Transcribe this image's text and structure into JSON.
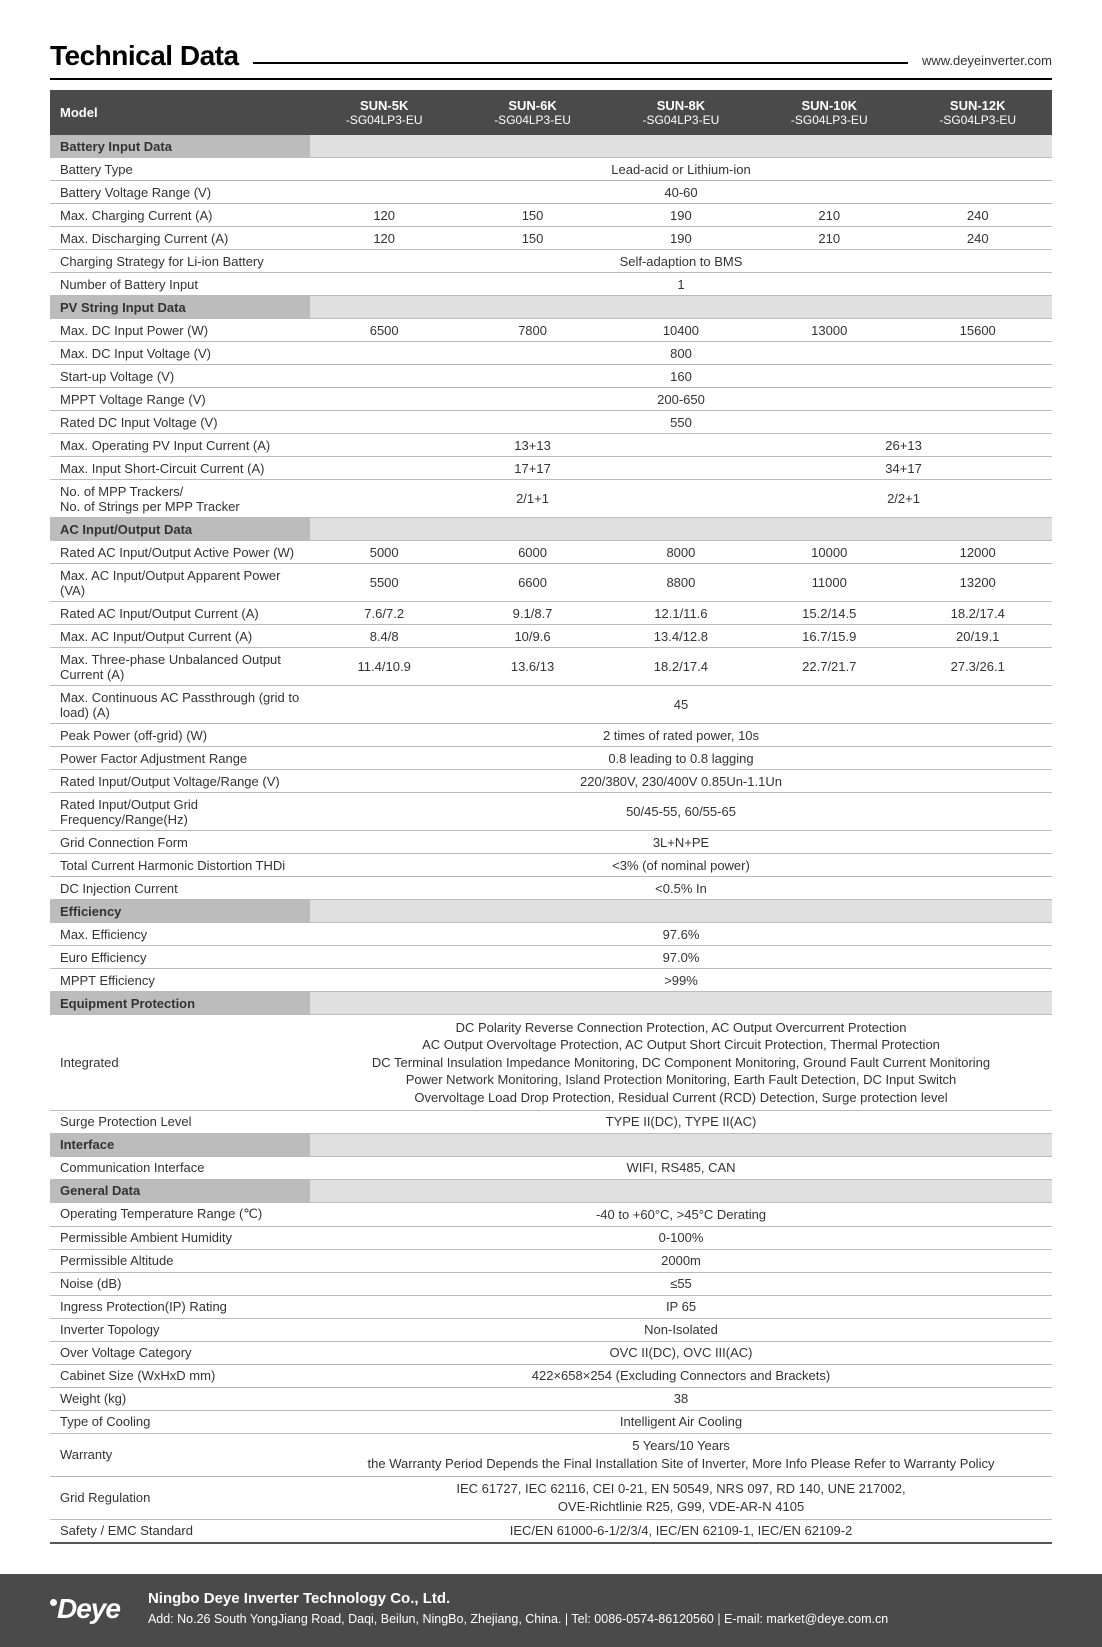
{
  "header": {
    "title": "Technical Data",
    "url": "www.deyeinverter.com"
  },
  "columns": [
    {
      "top": "SUN-5K",
      "bot": "-SG04LP3-EU"
    },
    {
      "top": "SUN-6K",
      "bot": "-SG04LP3-EU"
    },
    {
      "top": "SUN-8K",
      "bot": "-SG04LP3-EU"
    },
    {
      "top": "SUN-10K",
      "bot": "-SG04LP3-EU"
    },
    {
      "top": "SUN-12K",
      "bot": "-SG04LP3-EU"
    }
  ],
  "model_label": "Model",
  "sections": [
    {
      "title": "Battery Input Data",
      "rows": [
        {
          "label": "Battery Type",
          "full": "Lead-acid or Lithium-ion"
        },
        {
          "label": "Battery Voltage Range (V)",
          "full": "40-60"
        },
        {
          "label": "Max. Charging Current (A)",
          "vals": [
            "120",
            "150",
            "190",
            "210",
            "240"
          ]
        },
        {
          "label": "Max. Discharging Current (A)",
          "vals": [
            "120",
            "150",
            "190",
            "210",
            "240"
          ]
        },
        {
          "label": "Charging Strategy for Li-ion Battery",
          "full": "Self-adaption to BMS"
        },
        {
          "label": "Number of Battery Input",
          "full": "1"
        }
      ]
    },
    {
      "title": "PV String Input Data",
      "rows": [
        {
          "label": "Max. DC Input Power (W)",
          "vals": [
            "6500",
            "7800",
            "10400",
            "13000",
            "15600"
          ]
        },
        {
          "label": "Max. DC Input Voltage (V)",
          "full": "800"
        },
        {
          "label": "Start-up Voltage (V)",
          "full": "160"
        },
        {
          "label": "MPPT Voltage Range (V)",
          "full": "200-650"
        },
        {
          "label": "Rated DC Input Voltage (V)",
          "full": "550"
        },
        {
          "label": "Max. Operating PV Input Current (A)",
          "split": {
            "left": "13+13",
            "right": "26+13"
          }
        },
        {
          "label": "Max. Input Short-Circuit Current (A)",
          "split": {
            "left": "17+17",
            "right": "34+17"
          }
        },
        {
          "label": "No. of MPP Trackers/\nNo. of Strings per MPP Tracker",
          "split": {
            "left": "2/1+1",
            "right": "2/2+1"
          }
        }
      ]
    },
    {
      "title": "AC Input/Output Data",
      "rows": [
        {
          "label": "Rated AC Input/Output Active Power (W)",
          "vals": [
            "5000",
            "6000",
            "8000",
            "10000",
            "12000"
          ]
        },
        {
          "label": "Max. AC Input/Output Apparent Power (VA)",
          "vals": [
            "5500",
            "6600",
            "8800",
            "11000",
            "13200"
          ]
        },
        {
          "label": "Rated AC Input/Output Current (A)",
          "vals": [
            "7.6/7.2",
            "9.1/8.7",
            "12.1/11.6",
            "15.2/14.5",
            "18.2/17.4"
          ]
        },
        {
          "label": "Max. AC Input/Output Current (A)",
          "vals": [
            "8.4/8",
            "10/9.6",
            "13.4/12.8",
            "16.7/15.9",
            "20/19.1"
          ]
        },
        {
          "label": "Max. Three-phase Unbalanced Output Current (A)",
          "vals": [
            "11.4/10.9",
            "13.6/13",
            "18.2/17.4",
            "22.7/21.7",
            "27.3/26.1"
          ]
        },
        {
          "label": "Max. Continuous AC Passthrough (grid to load) (A)",
          "full": "45"
        },
        {
          "label": "Peak Power (off-grid) (W)",
          "full": "2 times of rated power, 10s"
        },
        {
          "label": "Power Factor Adjustment Range",
          "full": "0.8 leading to 0.8 lagging"
        },
        {
          "label": "Rated Input/Output Voltage/Range (V)",
          "full": "220/380V, 230/400V  0.85Un-1.1Un"
        },
        {
          "label": "Rated Input/Output Grid Frequency/Range(Hz)",
          "full": "50/45-55, 60/55-65"
        },
        {
          "label": "Grid Connection Form",
          "full": "3L+N+PE"
        },
        {
          "label": "Total Current Harmonic Distortion THDi",
          "full": "<3% (of nominal power)"
        },
        {
          "label": "DC Injection Current",
          "full": "<0.5% In"
        }
      ]
    },
    {
      "title": "Efficiency",
      "rows": [
        {
          "label": "Max. Efficiency",
          "full": "97.6%"
        },
        {
          "label": "Euro Efficiency",
          "full": "97.0%"
        },
        {
          "label": "MPPT Efficiency",
          "full": ">99%"
        }
      ]
    },
    {
      "title": "Equipment Protection",
      "rows": [
        {
          "label": "Integrated",
          "full": "DC Polarity Reverse Connection Protection, AC Output Overcurrent Protection\nAC Output Overvoltage Protection, AC Output Short Circuit Protection, Thermal Protection\nDC Terminal Insulation Impedance Monitoring, DC Component Monitoring, Ground Fault Current Monitoring\nPower Network Monitoring, Island Protection Monitoring, Earth Fault Detection, DC Input Switch\nOvervoltage Load Drop Protection, Residual Current (RCD) Detection, Surge protection level",
          "multiline": true
        },
        {
          "label": "Surge Protection Level",
          "full": "TYPE II(DC), TYPE II(AC)"
        }
      ]
    },
    {
      "title": "Interface",
      "rows": [
        {
          "label": "Communication Interface",
          "full": "WIFI, RS485, CAN"
        }
      ]
    },
    {
      "title": "General Data",
      "rows": [
        {
          "label": "Operating Temperature Range (℃)",
          "full": "-40 to +60°C, >45°C Derating"
        },
        {
          "label": "Permissible Ambient Humidity",
          "full": "0-100%"
        },
        {
          "label": "Permissible Altitude",
          "full": "2000m"
        },
        {
          "label": "Noise (dB)",
          "full": "≤55"
        },
        {
          "label": "Ingress Protection(IP) Rating",
          "full": "IP 65"
        },
        {
          "label": "Inverter Topology",
          "full": "Non-Isolated"
        },
        {
          "label": "Over Voltage Category",
          "full": "OVC II(DC), OVC III(AC)"
        },
        {
          "label": "Cabinet Size (WxHxD mm)",
          "full": "422×658×254 (Excluding Connectors and Brackets)"
        },
        {
          "label": "Weight (kg)",
          "full": "38"
        },
        {
          "label": "Type of Cooling",
          "full": "Intelligent Air Cooling"
        },
        {
          "label": "Warranty",
          "full": "5 Years/10 Years\nthe Warranty Period Depends the Final Installation Site of Inverter, More Info Please Refer to Warranty Policy",
          "multiline": true
        },
        {
          "label": "Grid Regulation",
          "full": "IEC 61727, IEC 62116, CEI 0-21, EN 50549, NRS 097, RD 140, UNE 217002,\nOVE-Richtlinie R25, G99, VDE-AR-N 4105",
          "multiline": true
        },
        {
          "label": "Safety / EMC Standard",
          "full": "IEC/EN 61000-6-1/2/3/4, IEC/EN 62109-1, IEC/EN 62109-2"
        }
      ]
    }
  ],
  "footer": {
    "logo": "Deye",
    "company": "Ningbo Deye Inverter Technology Co., Ltd.",
    "address": "Add: No.26 South YongJiang Road, Daqi, Beilun, NingBo, Zhejiang, China.  |  Tel: 0086-0574-86120560  |  E-mail: market@deye.com.cn"
  }
}
